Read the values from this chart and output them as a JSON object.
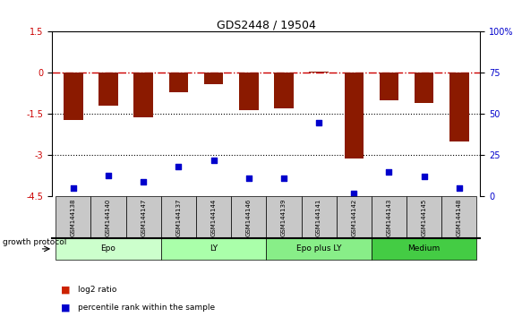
{
  "title": "GDS2448 / 19504",
  "samples": [
    "GSM144138",
    "GSM144140",
    "GSM144147",
    "GSM144137",
    "GSM144144",
    "GSM144146",
    "GSM144139",
    "GSM144141",
    "GSM144142",
    "GSM144143",
    "GSM144145",
    "GSM144148"
  ],
  "log2_ratio": [
    -1.7,
    -1.2,
    -1.6,
    -0.7,
    -0.4,
    -1.35,
    -1.3,
    0.05,
    -3.1,
    -1.0,
    -1.1,
    -2.5
  ],
  "percentile_rank": [
    5,
    13,
    9,
    18,
    22,
    11,
    11,
    45,
    2,
    15,
    12,
    5
  ],
  "groups": [
    {
      "label": "Epo",
      "start": 0,
      "end": 3,
      "color": "#ccffcc"
    },
    {
      "label": "LY",
      "start": 3,
      "end": 6,
      "color": "#aaffaa"
    },
    {
      "label": "Epo plus LY",
      "start": 6,
      "end": 9,
      "color": "#99ee99"
    },
    {
      "label": "Medium",
      "start": 9,
      "end": 12,
      "color": "#55cc55"
    }
  ],
  "ylim_left": [
    -4.5,
    1.5
  ],
  "ylim_right": [
    0,
    100
  ],
  "yticks_left": [
    1.5,
    0,
    -1.5,
    -3.0,
    -4.5
  ],
  "yticks_right": [
    100,
    75,
    50,
    25,
    0
  ],
  "hlines": [
    -1.5,
    -3.0
  ],
  "bar_color": "#8B1A00",
  "dot_color": "#0000CC",
  "zero_line_color": "#CC0000",
  "background_color": "#ffffff",
  "bar_width": 0.55,
  "legend_items": [
    {
      "label": "log2 ratio",
      "color": "#CC2200"
    },
    {
      "label": "percentile rank within the sample",
      "color": "#0000CC"
    }
  ],
  "group_colors_light": [
    "#ccffcc",
    "#aaffaa",
    "#88ee88",
    "#44cc44"
  ]
}
